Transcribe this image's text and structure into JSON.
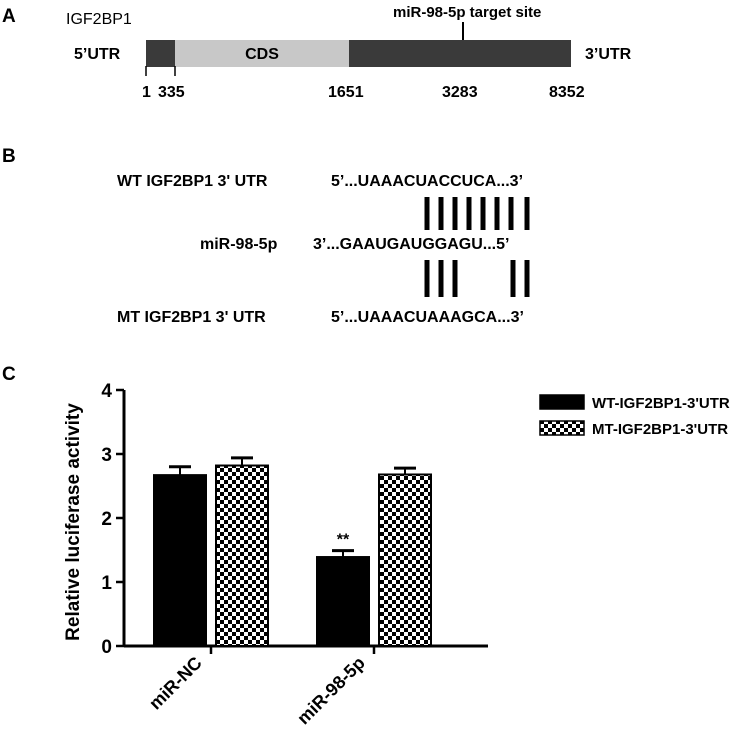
{
  "panel_a": {
    "letter": "A",
    "gene": "IGF2BP1",
    "left_label": "5’UTR",
    "right_label": "3’UTR",
    "region_label": "CDS",
    "site_label": "miR-98-5p target site",
    "positions": [
      "1",
      "335",
      "1651",
      "3283",
      "8352"
    ],
    "colors": {
      "utr": "#3a3a3a",
      "cds": "#c8c8c8"
    }
  },
  "panel_b": {
    "letter": "B",
    "wt_label": "WT IGF2BP1 3' UTR",
    "wt_seq": "5’...UAAACUACCUCA...3’",
    "mir_label": "miR-98-5p",
    "mir_seq": "3’...GAAUGAUGGAGU...5’",
    "mt_label": "MT IGF2BP1 3' UTR",
    "mt_seq": "5’...UAAACUAAAGCA...3’"
  },
  "panel_c": {
    "letter": "C",
    "significance": "**"
  },
  "chart_data": {
    "type": "bar",
    "categories": [
      "miR-NC",
      "miR-98-5p"
    ],
    "series": [
      {
        "name": "WT-IGF2BP1-3'UTR",
        "values": [
          2.67,
          1.39
        ],
        "errors": [
          0.13,
          0.1
        ],
        "pattern": "solid"
      },
      {
        "name": "MT-IGF2BP1-3'UTR",
        "values": [
          2.82,
          2.68
        ],
        "errors": [
          0.12,
          0.1
        ],
        "pattern": "checker"
      }
    ],
    "ylabel": "Relative luciferase activity",
    "xlabel": "",
    "ylim": [
      0,
      4
    ],
    "yticks": [
      "0",
      "1",
      "2",
      "3",
      "4"
    ],
    "grid": false,
    "legend": "top-right"
  }
}
